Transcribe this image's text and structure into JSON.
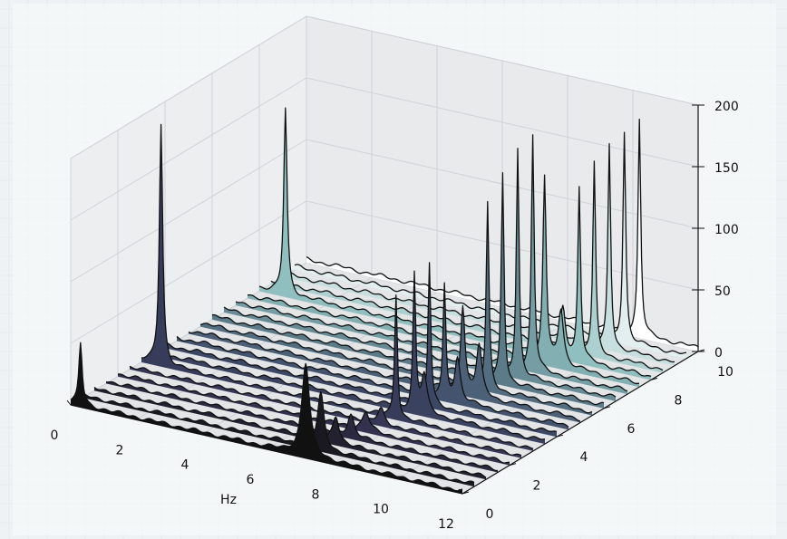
{
  "chart_data": {
    "type": "area",
    "title": "",
    "xlabel": "Hz",
    "ylabel": "",
    "zlabel": "",
    "x_ticks": [
      0,
      2,
      4,
      6,
      8,
      10,
      12
    ],
    "y_ticks": [
      0,
      2,
      4,
      6,
      8,
      10
    ],
    "z_ticks": [
      0,
      50,
      100,
      150,
      200
    ],
    "xlim": [
      0,
      12
    ],
    "ylim": [
      0,
      10
    ],
    "zlim": [
      0,
      200
    ],
    "grid": true,
    "colormap": [
      "#111111",
      "#34314f",
      "#3c4766",
      "#5b7b88",
      "#8fc0bf",
      "#ffffff"
    ],
    "series": [
      {
        "y": 0,
        "baseline": 3,
        "peaks": [
          {
            "x": 0.3,
            "h": 50,
            "w": 0.06
          },
          {
            "x": 7.2,
            "h": 75,
            "w": 0.14
          }
        ]
      },
      {
        "y": 0.5,
        "baseline": 3,
        "peaks": [
          {
            "x": 7.3,
            "h": 45,
            "w": 0.12
          }
        ]
      },
      {
        "y": 1.0,
        "baseline": 3,
        "peaks": [
          {
            "x": 7.4,
            "h": 22,
            "w": 0.12
          }
        ]
      },
      {
        "y": 1.5,
        "baseline": 3,
        "peaks": [
          {
            "x": 7.5,
            "h": 18,
            "w": 0.12
          }
        ]
      },
      {
        "y": 2.0,
        "baseline": 3,
        "peaks": [
          {
            "x": 7.6,
            "h": 15,
            "w": 0.12
          }
        ]
      },
      {
        "y": 2.5,
        "baseline": 3,
        "peaks": [
          {
            "x": 7.7,
            "h": 12,
            "w": 0.12
          }
        ]
      },
      {
        "y": 3.0,
        "baseline": 3,
        "peaks": [
          {
            "x": 0.6,
            "h": 195,
            "w": 0.06
          },
          {
            "x": 7.8,
            "h": 100,
            "w": 0.05
          }
        ]
      },
      {
        "y": 3.5,
        "baseline": 4,
        "peaks": [
          {
            "x": 8.0,
            "h": 110,
            "w": 0.05
          },
          {
            "x": 8.3,
            "h": 30,
            "w": 0.1
          }
        ]
      },
      {
        "y": 4.0,
        "baseline": 4,
        "peaks": [
          {
            "x": 8.1,
            "h": 115,
            "w": 0.05
          }
        ]
      },
      {
        "y": 4.5,
        "baseline": 4,
        "peaks": [
          {
            "x": 8.2,
            "h": 90,
            "w": 0.05
          },
          {
            "x": 8.6,
            "h": 35,
            "w": 0.1
          }
        ]
      },
      {
        "y": 5.0,
        "baseline": 4,
        "peaks": [
          {
            "x": 8.4,
            "h": 70,
            "w": 0.08
          },
          {
            "x": 8.9,
            "h": 40,
            "w": 0.1
          }
        ]
      },
      {
        "y": 5.5,
        "baseline": 4,
        "peaks": [
          {
            "x": 8.8,
            "h": 150,
            "w": 0.05
          }
        ]
      },
      {
        "y": 6.0,
        "baseline": 4,
        "peaks": [
          {
            "x": 8.9,
            "h": 170,
            "w": 0.05
          }
        ]
      },
      {
        "y": 6.5,
        "baseline": 4,
        "peaks": [
          {
            "x": 9.0,
            "h": 185,
            "w": 0.05
          }
        ]
      },
      {
        "y": 7.0,
        "baseline": 4,
        "peaks": [
          {
            "x": 9.1,
            "h": 190,
            "w": 0.05
          }
        ]
      },
      {
        "y": 7.5,
        "baseline": 4,
        "peaks": [
          {
            "x": 9.1,
            "h": 150,
            "w": 0.06
          },
          {
            "x": 9.6,
            "h": 45,
            "w": 0.1
          }
        ]
      },
      {
        "y": 8.0,
        "baseline": 4,
        "peaks": [
          {
            "x": 0.8,
            "h": 150,
            "w": 0.06
          },
          {
            "x": 9.3,
            "h": 40,
            "w": 0.1
          },
          {
            "x": 9.8,
            "h": 140,
            "w": 0.05
          }
        ]
      },
      {
        "y": 8.5,
        "baseline": 4,
        "peaks": [
          {
            "x": 9.9,
            "h": 155,
            "w": 0.05
          }
        ]
      },
      {
        "y": 9.0,
        "baseline": 4,
        "peaks": [
          {
            "x": 10.0,
            "h": 165,
            "w": 0.05
          }
        ]
      },
      {
        "y": 9.5,
        "baseline": 4,
        "peaks": [
          {
            "x": 10.1,
            "h": 170,
            "w": 0.05
          }
        ]
      },
      {
        "y": 10.0,
        "baseline": 4,
        "peaks": [
          {
            "x": 10.2,
            "h": 175,
            "w": 0.05
          }
        ]
      }
    ]
  }
}
